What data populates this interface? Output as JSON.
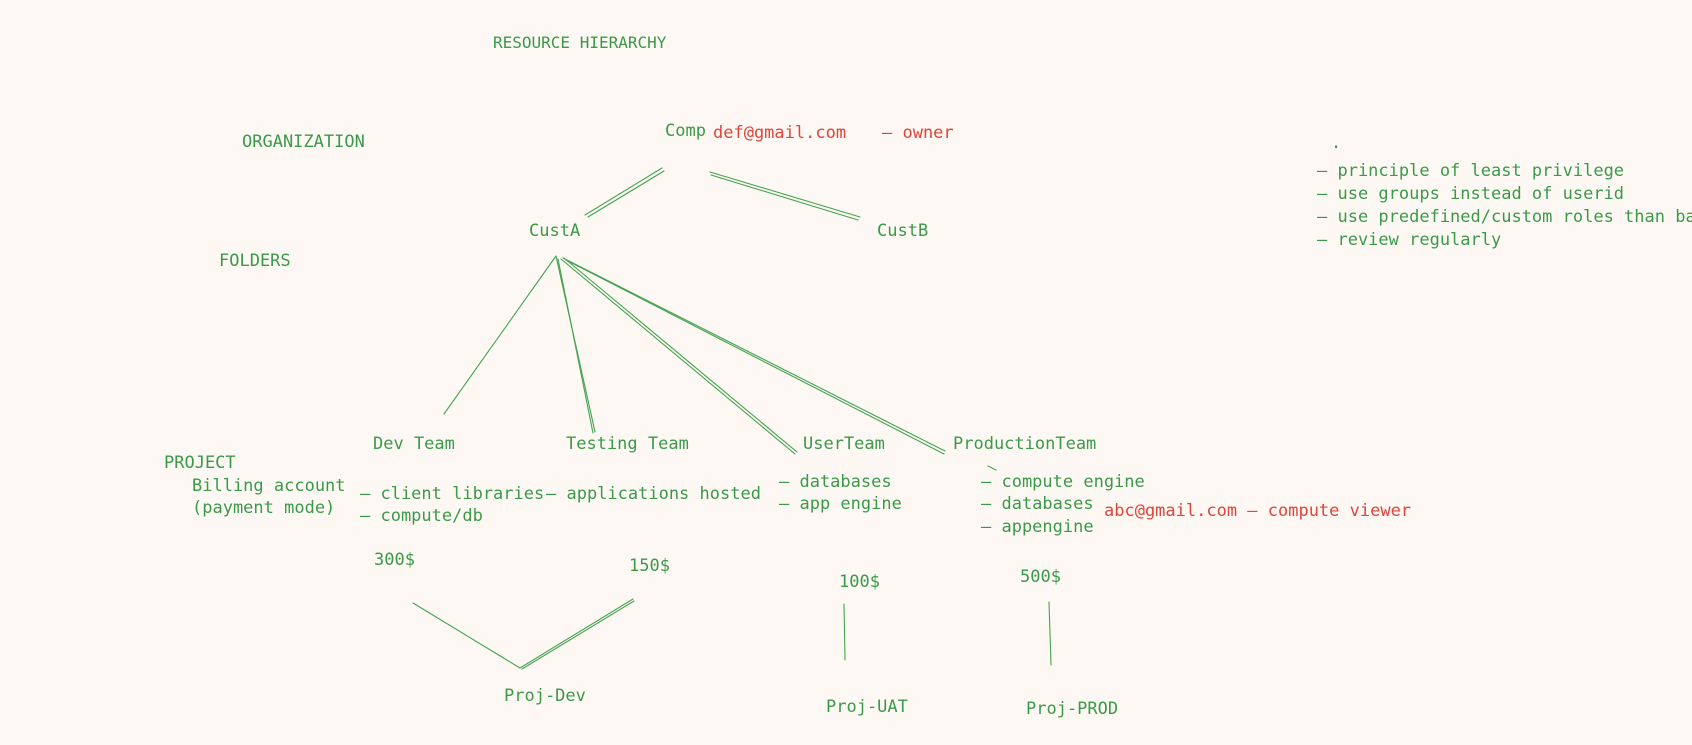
{
  "title": "RESOURCE HIERARCHY",
  "levels": {
    "organization": "ORGANIZATION",
    "folders": "FOLDERS",
    "project": "PROJECT",
    "billing_line1": "Billing account",
    "billing_line2": "(payment mode)"
  },
  "org_node": {
    "label": "Comp",
    "owner_email": "def@gmail.com",
    "owner_role": "– owner"
  },
  "folders": [
    "CustA",
    "CustB"
  ],
  "teams": [
    {
      "name": "Dev Team",
      "notes": [
        "– client libraries",
        "– compute/db"
      ],
      "cost": "300$"
    },
    {
      "name": "Testing Team",
      "notes": [
        "– applications hosted"
      ],
      "cost": "150$"
    },
    {
      "name": "UserTeam",
      "notes": [
        "– databases",
        "– app engine"
      ],
      "cost": "100$"
    },
    {
      "name": "ProductionTeam",
      "notes": [
        "– compute engine",
        "– databases",
        "– appengine"
      ],
      "cost": "500$"
    }
  ],
  "iam_binding": "abc@gmail.com – compute viewer",
  "projects": [
    "Proj-Dev",
    "Proj-UAT",
    "Proj-PROD"
  ],
  "best_practices": {
    "bullet": ".",
    "items": [
      "– principle of least privilege",
      "– use groups instead of userid",
      "– use predefined/custom roles than basic",
      "– review regularly"
    ]
  },
  "colors": {
    "background": "#fdf8f3",
    "ink_green": "#3a9a4a",
    "ink_red": "#e0443a"
  }
}
